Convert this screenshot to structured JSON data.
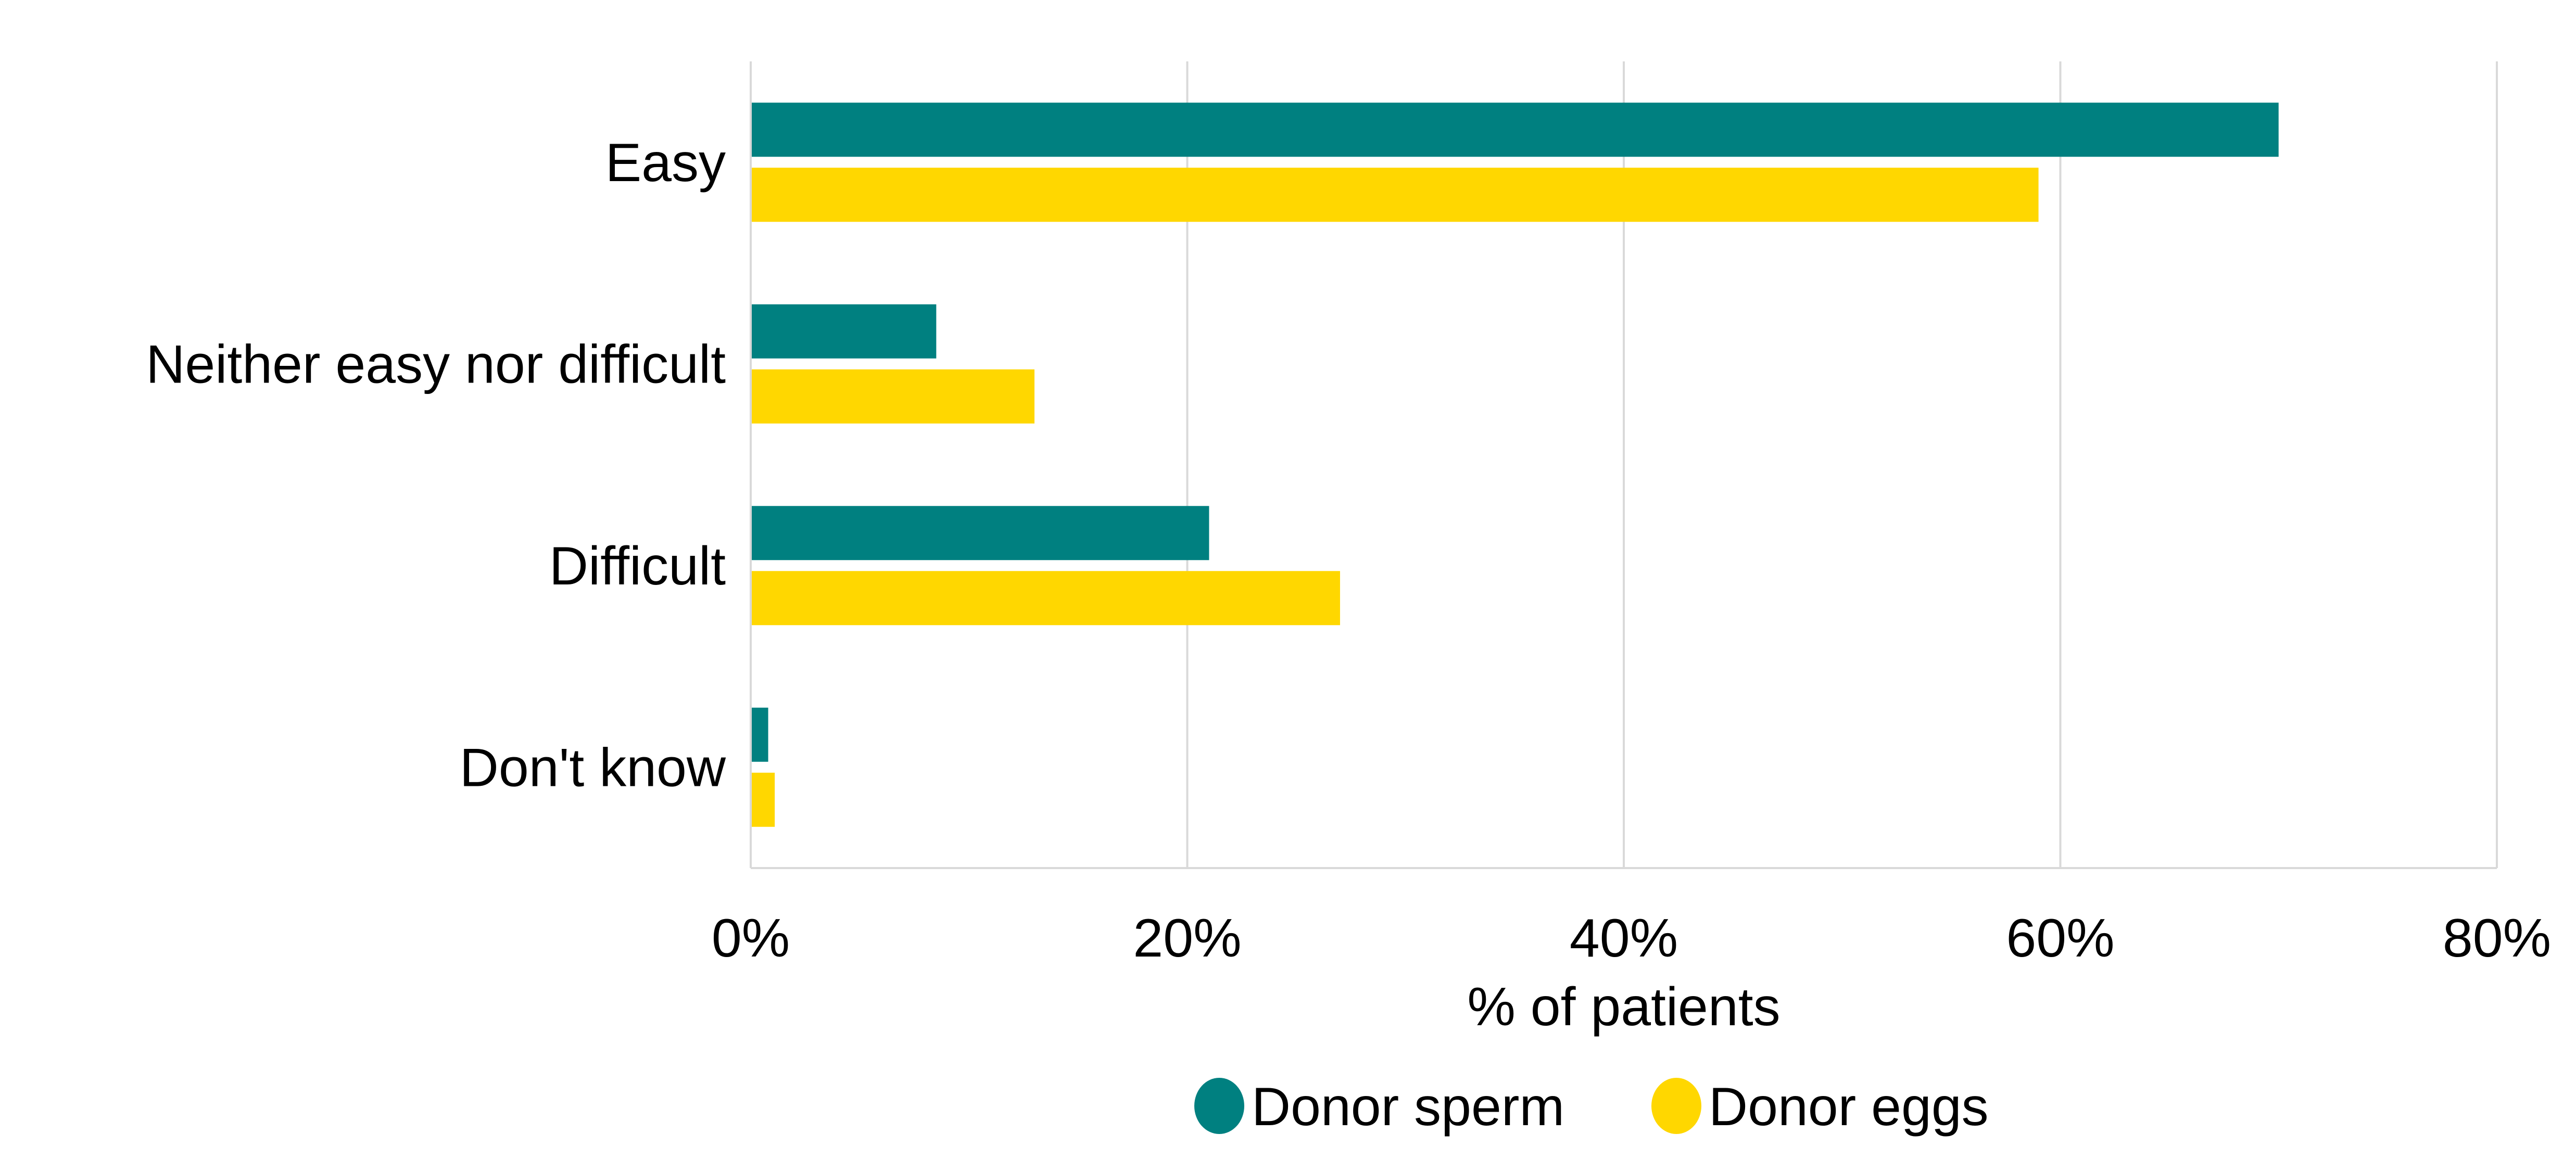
{
  "chart_data": {
    "type": "bar",
    "orientation": "horizontal",
    "categories": [
      "Easy",
      "Neither easy nor difficult",
      "Difficult",
      "Don't know"
    ],
    "series": [
      {
        "name": "Donor sperm",
        "color": "#008080",
        "values": [
          70,
          8.5,
          21,
          0.8
        ]
      },
      {
        "name": "Donor eggs",
        "color": "#FFD700",
        "values": [
          59,
          13,
          27,
          1.1
        ]
      }
    ],
    "xlabel": "% of patients",
    "ylabel": "",
    "xlim": [
      0,
      80
    ],
    "x_ticks": [
      0,
      20,
      40,
      60,
      80
    ],
    "x_tick_labels": [
      "0%",
      "20%",
      "40%",
      "60%",
      "80%"
    ],
    "grid": true,
    "legend_position": "bottom"
  }
}
